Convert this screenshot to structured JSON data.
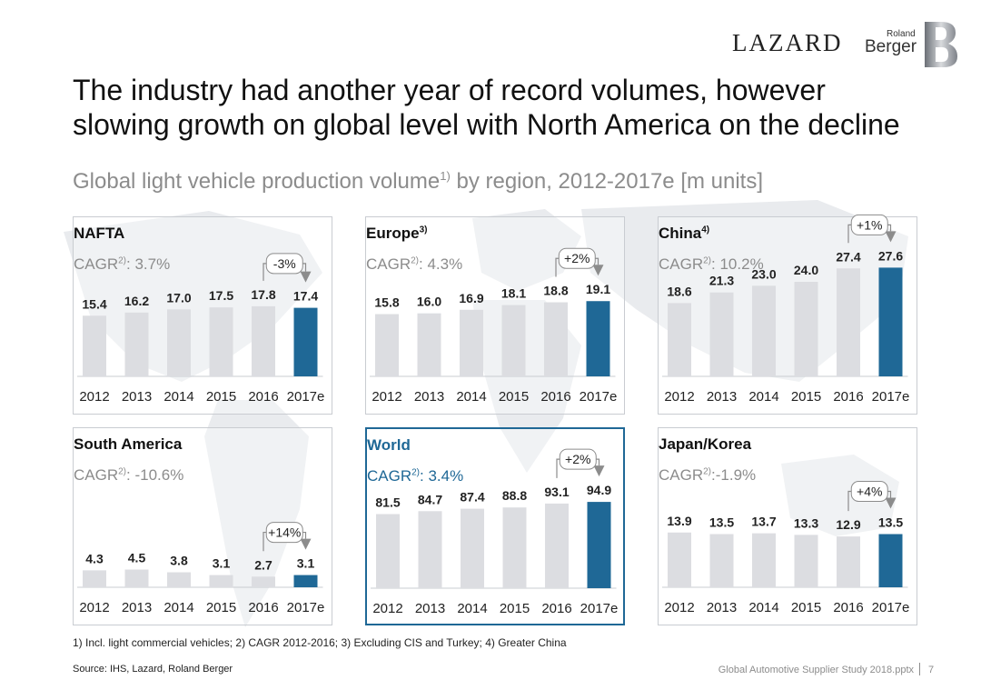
{
  "header": {
    "brand_lazard": "LAZARD",
    "brand_roland": "Roland",
    "brand_berger": "Berger",
    "title": "The industry had another year of record volumes, however slowing growth on global level with North America on the decline",
    "subtitle_main": "Global light vehicle production volume",
    "subtitle_sup": "1)",
    "subtitle_rest": " by region, 2012-2017e [m units]"
  },
  "colors": {
    "bar_grey": "#dcdde1",
    "bar_highlight": "#1f6896",
    "cagr_grey": "#8c8c8c",
    "connector": "#8c8c8c"
  },
  "chart_data": [
    {
      "type": "bar",
      "title": "NAFTA",
      "title_sup": "",
      "cagr_prefix": "CAGR",
      "cagr_sup": "2)",
      "cagr_value": ": 3.7%",
      "categories": [
        "2012",
        "2013",
        "2014",
        "2015",
        "2016",
        "2017e"
      ],
      "values": [
        15.4,
        16.2,
        17.0,
        17.5,
        17.8,
        17.4
      ],
      "labels": [
        "15.4",
        "16.2",
        "17.0",
        "17.5",
        "17.8",
        "17.4"
      ],
      "highlight_index": 5,
      "change_label": "-3%",
      "ylim": [
        0,
        30
      ]
    },
    {
      "type": "bar",
      "title": "Europe",
      "title_sup": "3)",
      "cagr_prefix": "CAGR",
      "cagr_sup": "2)",
      "cagr_value": ": 4.3%",
      "categories": [
        "2012",
        "2013",
        "2014",
        "2015",
        "2016",
        "2017e"
      ],
      "values": [
        15.8,
        16.0,
        16.9,
        18.1,
        18.8,
        19.1
      ],
      "labels": [
        "15.8",
        "16.0",
        "16.9",
        "18.1",
        "18.8",
        "19.1"
      ],
      "highlight_index": 5,
      "change_label": "+2%",
      "ylim": [
        0,
        30
      ]
    },
    {
      "type": "bar",
      "title": "China",
      "title_sup": "4)",
      "cagr_prefix": "CAGR",
      "cagr_sup": "2)",
      "cagr_value": ": 10.2%",
      "categories": [
        "2012",
        "2013",
        "2014",
        "2015",
        "2016",
        "2017e"
      ],
      "values": [
        18.6,
        21.3,
        23.0,
        24.0,
        27.4,
        27.6
      ],
      "labels": [
        "18.6",
        "21.3",
        "23.0",
        "24.0",
        "27.4",
        "27.6"
      ],
      "highlight_index": 5,
      "change_label": "+1%",
      "ylim": [
        0,
        30
      ]
    },
    {
      "type": "bar",
      "title": "South America",
      "title_sup": "",
      "cagr_prefix": "CAGR",
      "cagr_sup": "2)",
      "cagr_value": ": -10.6%",
      "categories": [
        "2012",
        "2013",
        "2014",
        "2015",
        "2016",
        "2017e"
      ],
      "values": [
        4.3,
        4.5,
        3.8,
        3.1,
        2.7,
        3.1
      ],
      "labels": [
        "4.3",
        "4.5",
        "3.8",
        "3.1",
        "2.7",
        "3.1"
      ],
      "highlight_index": 5,
      "change_label": "+14%",
      "ylim": [
        0,
        30
      ]
    },
    {
      "type": "bar",
      "title": "World",
      "title_sup": "",
      "cagr_prefix": "CAGR",
      "cagr_sup": "2)",
      "cagr_value": ": 3.4%",
      "categories": [
        "2012",
        "2013",
        "2014",
        "2015",
        "2016",
        "2017e"
      ],
      "values": [
        81.5,
        84.7,
        87.4,
        88.8,
        93.1,
        94.9
      ],
      "labels": [
        "81.5",
        "84.7",
        "87.4",
        "88.8",
        "93.1",
        "94.9"
      ],
      "highlight_index": 5,
      "change_label": "+2%",
      "ylim": [
        0,
        130
      ]
    },
    {
      "type": "bar",
      "title": "Japan/Korea",
      "title_sup": "",
      "cagr_prefix": "CAGR",
      "cagr_sup": "2)",
      "cagr_value": ":-1.9%",
      "categories": [
        "2012",
        "2013",
        "2014",
        "2015",
        "2016",
        "2017e"
      ],
      "values": [
        13.9,
        13.5,
        13.7,
        13.3,
        12.9,
        13.5
      ],
      "labels": [
        "13.9",
        "13.5",
        "13.7",
        "13.3",
        "12.9",
        "13.5"
      ],
      "highlight_index": 5,
      "change_label": "+4%",
      "ylim": [
        0,
        30
      ]
    }
  ],
  "footer": {
    "footnote": "1) Incl. light commercial vehicles; 2) CAGR 2012-2016; 3) Excluding CIS and Turkey; 4) Greater China",
    "source": "Source: IHS, Lazard, Roland Berger",
    "study": "Global Automotive Supplier Study 2018.pptx",
    "page": "7"
  }
}
